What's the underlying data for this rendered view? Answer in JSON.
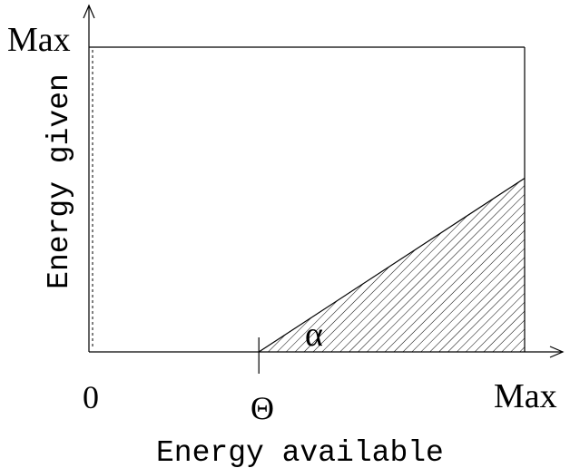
{
  "labels": {
    "y_axis_max": "Max",
    "x_axis_max": "Max",
    "origin": "0",
    "threshold": "Θ",
    "slope": "α",
    "x_axis_title": "Energy available",
    "y_axis_title": "Energy given"
  },
  "model": {
    "threshold_fraction_of_max": 0.39,
    "output_at_max_input_fraction": 0.57
  },
  "style": {
    "line_color": "#000000",
    "hatch_color": "#000000"
  }
}
